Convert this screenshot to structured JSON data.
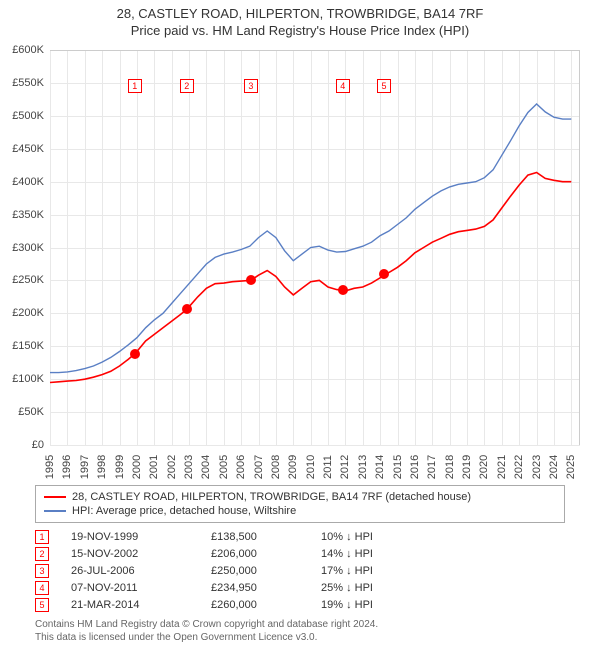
{
  "title": "28, CASTLEY ROAD, HILPERTON, TROWBRIDGE, BA14 7RF",
  "subtitle": "Price paid vs. HM Land Registry's House Price Index (HPI)",
  "chart": {
    "type": "line",
    "x_min": 1995,
    "x_max": 2025.5,
    "y_min": 0,
    "y_max": 600000,
    "y_step": 50000,
    "y_prefix": "£",
    "y_suffix": "K",
    "x_ticks": [
      1995,
      1996,
      1997,
      1998,
      1999,
      2000,
      2001,
      2002,
      2003,
      2004,
      2005,
      2006,
      2007,
      2008,
      2009,
      2010,
      2011,
      2012,
      2013,
      2014,
      2015,
      2016,
      2017,
      2018,
      2019,
      2020,
      2021,
      2022,
      2023,
      2024,
      2025
    ],
    "grid_color": "#e8e8e8",
    "background": "#ffffff",
    "series": [
      {
        "name": "28, CASTLEY ROAD, HILPERTON, TROWBRIDGE, BA14 7RF (detached house)",
        "color": "#ff0000",
        "width": 1.6,
        "data": [
          [
            1995.0,
            95000
          ],
          [
            1995.5,
            96000
          ],
          [
            1996.0,
            97000
          ],
          [
            1996.5,
            98000
          ],
          [
            1997.0,
            100000
          ],
          [
            1997.5,
            103000
          ],
          [
            1998.0,
            107000
          ],
          [
            1998.5,
            112000
          ],
          [
            1999.0,
            120000
          ],
          [
            1999.5,
            130000
          ],
          [
            1999.88,
            138500
          ],
          [
            2000.0,
            142000
          ],
          [
            2000.5,
            158000
          ],
          [
            2001.0,
            168000
          ],
          [
            2001.5,
            178000
          ],
          [
            2002.0,
            188000
          ],
          [
            2002.5,
            198000
          ],
          [
            2002.87,
            206000
          ],
          [
            2003.0,
            210000
          ],
          [
            2003.5,
            225000
          ],
          [
            2004.0,
            238000
          ],
          [
            2004.5,
            245000
          ],
          [
            2005.0,
            246000
          ],
          [
            2005.5,
            248000
          ],
          [
            2006.0,
            249000
          ],
          [
            2006.56,
            250000
          ],
          [
            2007.0,
            258000
          ],
          [
            2007.5,
            265000
          ],
          [
            2008.0,
            256000
          ],
          [
            2008.5,
            240000
          ],
          [
            2009.0,
            228000
          ],
          [
            2009.5,
            238000
          ],
          [
            2010.0,
            248000
          ],
          [
            2010.5,
            250000
          ],
          [
            2011.0,
            240000
          ],
          [
            2011.5,
            236000
          ],
          [
            2011.85,
            234950
          ],
          [
            2012.0,
            234000
          ],
          [
            2012.5,
            238000
          ],
          [
            2013.0,
            240000
          ],
          [
            2013.5,
            246000
          ],
          [
            2014.0,
            254000
          ],
          [
            2014.22,
            260000
          ],
          [
            2014.5,
            262000
          ],
          [
            2015.0,
            270000
          ],
          [
            2015.5,
            280000
          ],
          [
            2016.0,
            292000
          ],
          [
            2016.5,
            300000
          ],
          [
            2017.0,
            308000
          ],
          [
            2017.5,
            314000
          ],
          [
            2018.0,
            320000
          ],
          [
            2018.5,
            324000
          ],
          [
            2019.0,
            326000
          ],
          [
            2019.5,
            328000
          ],
          [
            2020.0,
            332000
          ],
          [
            2020.5,
            342000
          ],
          [
            2021.0,
            360000
          ],
          [
            2021.5,
            378000
          ],
          [
            2022.0,
            395000
          ],
          [
            2022.5,
            410000
          ],
          [
            2023.0,
            414000
          ],
          [
            2023.5,
            405000
          ],
          [
            2024.0,
            402000
          ],
          [
            2024.5,
            400000
          ],
          [
            2025.0,
            400000
          ]
        ]
      },
      {
        "name": "HPI: Average price, detached house, Wiltshire",
        "color": "#5a7fc4",
        "width": 1.4,
        "data": [
          [
            1995.0,
            110000
          ],
          [
            1995.5,
            110000
          ],
          [
            1996.0,
            111000
          ],
          [
            1996.5,
            113000
          ],
          [
            1997.0,
            116000
          ],
          [
            1997.5,
            120000
          ],
          [
            1998.0,
            126000
          ],
          [
            1998.5,
            133000
          ],
          [
            1999.0,
            142000
          ],
          [
            1999.5,
            152000
          ],
          [
            2000.0,
            163000
          ],
          [
            2000.5,
            178000
          ],
          [
            2001.0,
            190000
          ],
          [
            2001.5,
            200000
          ],
          [
            2002.0,
            215000
          ],
          [
            2002.5,
            230000
          ],
          [
            2003.0,
            245000
          ],
          [
            2003.5,
            260000
          ],
          [
            2004.0,
            275000
          ],
          [
            2004.5,
            285000
          ],
          [
            2005.0,
            290000
          ],
          [
            2005.5,
            293000
          ],
          [
            2006.0,
            297000
          ],
          [
            2006.5,
            302000
          ],
          [
            2007.0,
            315000
          ],
          [
            2007.5,
            325000
          ],
          [
            2008.0,
            315000
          ],
          [
            2008.5,
            295000
          ],
          [
            2009.0,
            280000
          ],
          [
            2009.5,
            290000
          ],
          [
            2010.0,
            300000
          ],
          [
            2010.5,
            302000
          ],
          [
            2011.0,
            296000
          ],
          [
            2011.5,
            293000
          ],
          [
            2012.0,
            294000
          ],
          [
            2012.5,
            298000
          ],
          [
            2013.0,
            302000
          ],
          [
            2013.5,
            308000
          ],
          [
            2014.0,
            318000
          ],
          [
            2014.5,
            325000
          ],
          [
            2015.0,
            335000
          ],
          [
            2015.5,
            345000
          ],
          [
            2016.0,
            358000
          ],
          [
            2016.5,
            368000
          ],
          [
            2017.0,
            378000
          ],
          [
            2017.5,
            386000
          ],
          [
            2018.0,
            392000
          ],
          [
            2018.5,
            396000
          ],
          [
            2019.0,
            398000
          ],
          [
            2019.5,
            400000
          ],
          [
            2020.0,
            406000
          ],
          [
            2020.5,
            418000
          ],
          [
            2021.0,
            440000
          ],
          [
            2021.5,
            462000
          ],
          [
            2022.0,
            485000
          ],
          [
            2022.5,
            505000
          ],
          [
            2023.0,
            518000
          ],
          [
            2023.5,
            506000
          ],
          [
            2024.0,
            498000
          ],
          [
            2024.5,
            495000
          ],
          [
            2025.0,
            495000
          ]
        ]
      }
    ],
    "sale_points": [
      {
        "idx": "1",
        "year": 1999.88,
        "price": 138500,
        "marker_y": 545000
      },
      {
        "idx": "2",
        "year": 2002.87,
        "price": 206000,
        "marker_y": 545000
      },
      {
        "idx": "3",
        "year": 2006.56,
        "price": 250000,
        "marker_y": 545000
      },
      {
        "idx": "4",
        "year": 2011.85,
        "price": 234950,
        "marker_y": 545000
      },
      {
        "idx": "5",
        "year": 2014.22,
        "price": 260000,
        "marker_y": 545000
      }
    ],
    "point_color": "#ff0000"
  },
  "legend": {
    "items": [
      {
        "label": "28, CASTLEY ROAD, HILPERTON, TROWBRIDGE, BA14 7RF (detached house)",
        "color": "#ff0000"
      },
      {
        "label": "HPI: Average price, detached house, Wiltshire",
        "color": "#5a7fc4"
      }
    ]
  },
  "sales": {
    "delta_symbol": "↓",
    "rows": [
      {
        "idx": "1",
        "date": "19-NOV-1999",
        "price": "£138,500",
        "delta": "10% ↓ HPI"
      },
      {
        "idx": "2",
        "date": "15-NOV-2002",
        "price": "£206,000",
        "delta": "14% ↓ HPI"
      },
      {
        "idx": "3",
        "date": "26-JUL-2006",
        "price": "£250,000",
        "delta": "17% ↓ HPI"
      },
      {
        "idx": "4",
        "date": "07-NOV-2011",
        "price": "£234,950",
        "delta": "25% ↓ HPI"
      },
      {
        "idx": "5",
        "date": "21-MAR-2014",
        "price": "£260,000",
        "delta": "19% ↓ HPI"
      }
    ]
  },
  "footer": {
    "line1": "Contains HM Land Registry data © Crown copyright and database right 2024.",
    "line2": "This data is licensed under the Open Government Licence v3.0."
  }
}
